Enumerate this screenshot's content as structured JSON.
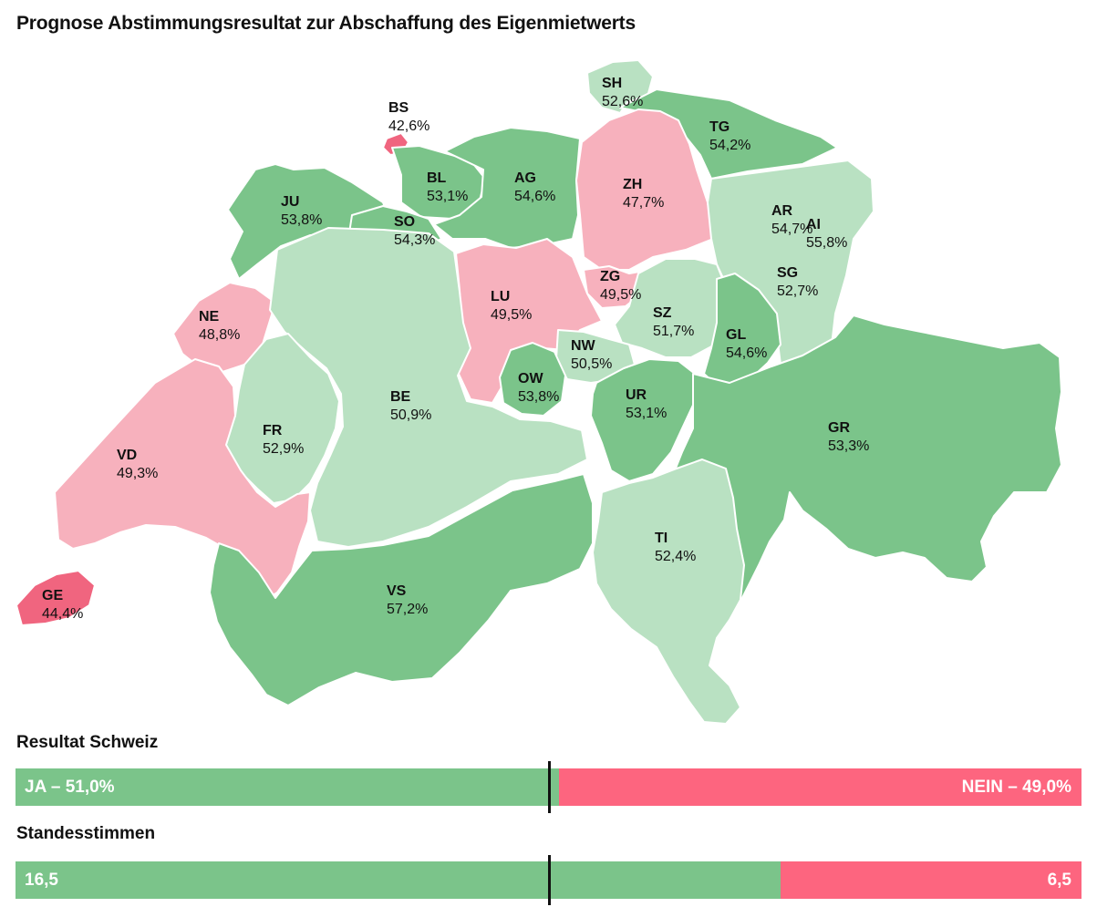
{
  "title": "Prognose Abstimmungsresultat zur Abschaffung des Eigenmietwerts",
  "colors": {
    "yes_strong": "#7bc48a",
    "yes_light": "#b9e1c2",
    "no_light": "#f7b1bd",
    "no_strong": "#f0657f",
    "bar_yes": "#7bc48a",
    "bar_no": "#fd657f"
  },
  "cantons": [
    {
      "code": "BS",
      "value": "42,6%",
      "category": "no_strong"
    },
    {
      "code": "SH",
      "value": "52,6%",
      "category": "yes_light"
    },
    {
      "code": "TG",
      "value": "54,2%",
      "category": "yes_strong"
    },
    {
      "code": "JU",
      "value": "53,8%",
      "category": "yes_strong"
    },
    {
      "code": "BL",
      "value": "53,1%",
      "category": "yes_strong"
    },
    {
      "code": "AG",
      "value": "54,6%",
      "category": "yes_strong"
    },
    {
      "code": "ZH",
      "value": "47,7%",
      "category": "no_light"
    },
    {
      "code": "SO",
      "value": "54,3%",
      "category": "yes_strong"
    },
    {
      "code": "AR",
      "value": "54,7%",
      "category": "yes_strong"
    },
    {
      "code": "AI",
      "value": "55,8%",
      "category": "yes_strong"
    },
    {
      "code": "NE",
      "value": "48,8%",
      "category": "no_light"
    },
    {
      "code": "LU",
      "value": "49,5%",
      "category": "no_light"
    },
    {
      "code": "ZG",
      "value": "49,5%",
      "category": "no_light"
    },
    {
      "code": "SG",
      "value": "52,7%",
      "category": "yes_light"
    },
    {
      "code": "SZ",
      "value": "51,7%",
      "category": "yes_light"
    },
    {
      "code": "GL",
      "value": "54,6%",
      "category": "yes_strong"
    },
    {
      "code": "NW",
      "value": "50,5%",
      "category": "yes_light"
    },
    {
      "code": "OW",
      "value": "53,8%",
      "category": "yes_strong"
    },
    {
      "code": "BE",
      "value": "50,9%",
      "category": "yes_light"
    },
    {
      "code": "UR",
      "value": "53,1%",
      "category": "yes_strong"
    },
    {
      "code": "FR",
      "value": "52,9%",
      "category": "yes_light"
    },
    {
      "code": "GR",
      "value": "53,3%",
      "category": "yes_strong"
    },
    {
      "code": "VD",
      "value": "49,3%",
      "category": "no_light"
    },
    {
      "code": "TI",
      "value": "52,4%",
      "category": "yes_light"
    },
    {
      "code": "VS",
      "value": "57,2%",
      "category": "yes_strong"
    },
    {
      "code": "GE",
      "value": "44,4%",
      "category": "no_strong"
    }
  ],
  "result": {
    "title": "Resultat Schweiz",
    "yes_label": "JA – 51,0%",
    "no_label": "NEIN – 49,0%",
    "yes_share": 0.51,
    "majority_share": 0.5
  },
  "cantonal": {
    "title": "Standesstimmen",
    "yes_label": "16,5",
    "no_label": "6,5",
    "yes_votes": 16.5,
    "no_votes": 6.5,
    "majority_share": 0.5
  }
}
